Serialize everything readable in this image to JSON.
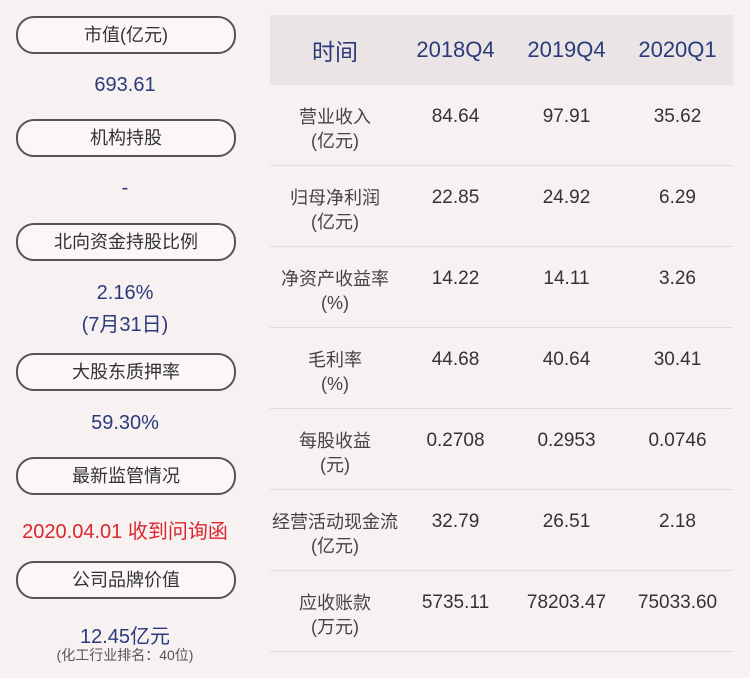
{
  "left": {
    "market_cap_label": "市值(亿元)",
    "market_cap_value": "693.61",
    "institution_label": "机构持股",
    "institution_value": "-",
    "northbound_label": "北向资金持股比例",
    "northbound_value": "2.16%",
    "northbound_date": "(7月31日)",
    "pledge_label": "大股东质押率",
    "pledge_value": "59.30%",
    "regulation_label": "最新监管情况",
    "regulation_value": "2020.04.01 收到问询函",
    "brand_label": "公司品牌价值",
    "brand_value": "12.45亿元",
    "brand_rank": "(化工行业排名：40位)"
  },
  "table": {
    "headers": [
      "时间",
      "2018Q4",
      "2019Q4",
      "2020Q1"
    ],
    "rows": [
      {
        "name": "营业收入",
        "unit": "(亿元)",
        "values": [
          "84.64",
          "97.91",
          "35.62"
        ]
      },
      {
        "name": "归母净利润",
        "unit": "(亿元)",
        "values": [
          "22.85",
          "24.92",
          "6.29"
        ]
      },
      {
        "name": "净资产收益率",
        "unit": "(%)",
        "values": [
          "14.22",
          "14.11",
          "3.26"
        ]
      },
      {
        "name": "毛利率",
        "unit": "(%)",
        "values": [
          "44.68",
          "40.64",
          "30.41"
        ]
      },
      {
        "name": "每股收益",
        "unit": "(元)",
        "values": [
          "0.2708",
          "0.2953",
          "0.0746"
        ]
      },
      {
        "name": "经营活动现金流",
        "unit": "(亿元)",
        "values": [
          "32.79",
          "26.51",
          "2.18"
        ]
      },
      {
        "name": "应收账款",
        "unit": "(万元)",
        "values": [
          "5735.11",
          "78203.47",
          "75033.60"
        ]
      }
    ]
  }
}
